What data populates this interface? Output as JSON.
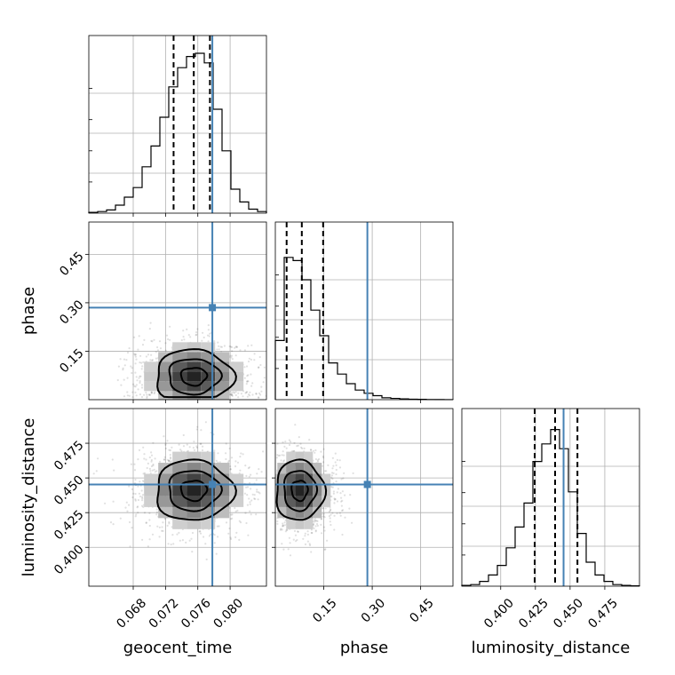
{
  "chart_data": {
    "type": "corner",
    "parameters": [
      "geocent_time",
      "phase",
      "luminosity_distance"
    ],
    "ranges": {
      "geocent_time": [
        0.0625,
        0.0845
      ],
      "phase": [
        0.0,
        0.55
      ],
      "luminosity_distance": [
        0.372,
        0.5
      ]
    },
    "ticks": {
      "geocent_time": {
        "values": [
          0.068,
          0.072,
          0.076,
          0.08
        ],
        "labels": [
          "0.068",
          "0.072",
          "0.076",
          "0.080"
        ]
      },
      "phase": {
        "values": [
          0.15,
          0.3,
          0.45
        ],
        "labels": [
          "0.15",
          "0.30",
          "0.45"
        ]
      },
      "luminosity_distance": {
        "values": [
          0.4,
          0.425,
          0.45,
          0.475
        ],
        "labels": [
          "0.400",
          "0.425",
          "0.450",
          "0.475"
        ]
      }
    },
    "truths": {
      "geocent_time": 0.0778,
      "phase": 0.285,
      "luminosity_distance": 0.4453
    },
    "quantiles": {
      "geocent_time": [
        0.073,
        0.0755,
        0.0775
      ],
      "phase": [
        0.035,
        0.082,
        0.148
      ],
      "luminosity_distance": [
        0.4245,
        0.4392,
        0.4553
      ]
    },
    "histograms": {
      "geocent_time": {
        "bin_edges": [
          0.0625,
          0.0636,
          0.0647,
          0.0658,
          0.0669,
          0.068,
          0.0691,
          0.0702,
          0.0713,
          0.0724,
          0.0735,
          0.0746,
          0.0757,
          0.0768,
          0.0779,
          0.079,
          0.0801,
          0.0812,
          0.0823,
          0.0834,
          0.0845
        ],
        "counts": [
          0.005,
          0.01,
          0.02,
          0.05,
          0.1,
          0.16,
          0.29,
          0.42,
          0.6,
          0.79,
          0.91,
          0.98,
          1.0,
          0.94,
          0.65,
          0.39,
          0.15,
          0.07,
          0.025,
          0.01
        ]
      },
      "phase": {
        "bin_edges": [
          0.0,
          0.0275,
          0.055,
          0.0825,
          0.11,
          0.1375,
          0.165,
          0.1925,
          0.22,
          0.2475,
          0.275,
          0.3025,
          0.33,
          0.3575,
          0.385,
          0.4125,
          0.44,
          0.4675,
          0.495,
          0.5225,
          0.55
        ],
        "counts": [
          0.37,
          0.89,
          0.87,
          0.75,
          0.56,
          0.4,
          0.23,
          0.16,
          0.1,
          0.06,
          0.04,
          0.025,
          0.012,
          0.008,
          0.005,
          0.003,
          0.002,
          0.001,
          0.0005,
          0.0003
        ]
      },
      "luminosity_distance": {
        "bin_edges": [
          0.372,
          0.3784,
          0.3848,
          0.3912,
          0.3976,
          0.404,
          0.4104,
          0.4168,
          0.4232,
          0.4296,
          0.436,
          0.4424,
          0.4488,
          0.4552,
          0.4616,
          0.468,
          0.4744,
          0.4808,
          0.4872,
          0.4936,
          0.5
        ],
        "counts": [
          0.005,
          0.01,
          0.03,
          0.07,
          0.13,
          0.24,
          0.37,
          0.52,
          0.78,
          0.89,
          0.98,
          0.86,
          0.59,
          0.33,
          0.15,
          0.07,
          0.03,
          0.01,
          0.005,
          0.002
        ]
      }
    },
    "pair_posteriors": {
      "geocent_time|phase": {
        "mean_x": 0.0755,
        "mean_y": 0.072,
        "sd_x": 0.0032,
        "sd_y": 0.055,
        "levels": [
          0.5,
          1.0,
          1.5
        ]
      },
      "geocent_time|luminosity_distance": {
        "mean_x": 0.0755,
        "mean_y": 0.441,
        "sd_x": 0.0032,
        "sd_y": 0.0145,
        "levels": [
          0.5,
          1.0,
          1.5
        ]
      },
      "phase|luminosity_distance": {
        "mean_x": 0.075,
        "mean_y": 0.441,
        "sd_x": 0.05,
        "sd_y": 0.0145,
        "levels": [
          0.5,
          1.0,
          1.5
        ]
      }
    },
    "colors": {
      "truth": "#4682b4",
      "contour": "#000000",
      "grid": "#b0b0b0"
    },
    "grid": true
  }
}
